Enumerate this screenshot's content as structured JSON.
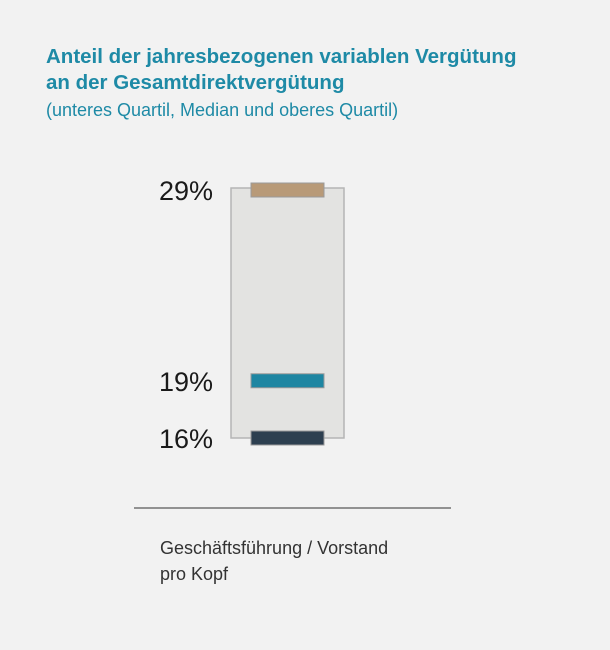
{
  "title_lines": [
    "Anteil der jahresbezogenen variablen Vergütung",
    "an der Gesamtdirektvergütung"
  ],
  "subtitle": "(unteres Quartil, Median und oberes Quartil)",
  "colors": {
    "title": "#1e8aa6",
    "box_fill": "#e3e3e1",
    "box_stroke": "#b5b5b5",
    "upper_quartile": "#b89a78",
    "median": "#1e86a2",
    "lower_quartile": "#2d3f50"
  },
  "chart_data": {
    "type": "box",
    "category_lines": [
      "Geschäftsführung / Vorstand",
      "pro Kopf"
    ],
    "unit": "%",
    "values": {
      "lower_quartile": 16,
      "median": 19,
      "upper_quartile": 29
    },
    "value_labels": {
      "lower_quartile": "16%",
      "median": "19%",
      "upper_quartile": "29%"
    },
    "grid": false,
    "legend": "none"
  }
}
